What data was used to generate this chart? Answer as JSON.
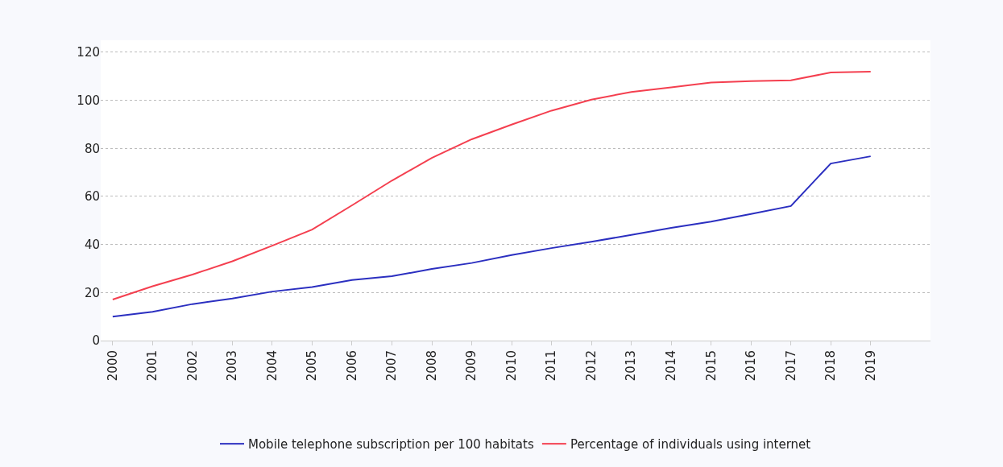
{
  "chart_data": {
    "type": "line",
    "categories": [
      "2000",
      "2001",
      "2002",
      "2003",
      "2004",
      "2005",
      "2006",
      "2007",
      "2008",
      "2009",
      "2010",
      "2011",
      "2012",
      "2013",
      "2014",
      "2015",
      "2016",
      "2017",
      "2018",
      "2019"
    ],
    "series": [
      {
        "name": "Mobile telephone subscription per 100 habitats",
        "color": "#2b2fc0",
        "values": [
          10,
          12,
          15.2,
          17.5,
          20.4,
          22.3,
          25.2,
          26.8,
          29.8,
          32.3,
          35.6,
          38.5,
          41.1,
          44,
          46.9,
          49.5,
          52.7,
          56,
          73.7,
          76.7
        ]
      },
      {
        "name": "Percentage of individuals using internet",
        "color": "#f43f4f",
        "values": [
          17.1,
          22.6,
          27.5,
          33,
          39.5,
          46.2,
          56.3,
          66.6,
          76,
          83.8,
          89.9,
          95.7,
          100.3,
          103.5,
          105.4,
          107.4,
          108,
          108.3,
          111.6,
          111.9
        ]
      }
    ],
    "ylim": [
      0,
      125
    ],
    "yticks": [
      0,
      20,
      40,
      60,
      80,
      100,
      120
    ],
    "grid": "y",
    "legend": "bottom",
    "line_style": "solid"
  }
}
